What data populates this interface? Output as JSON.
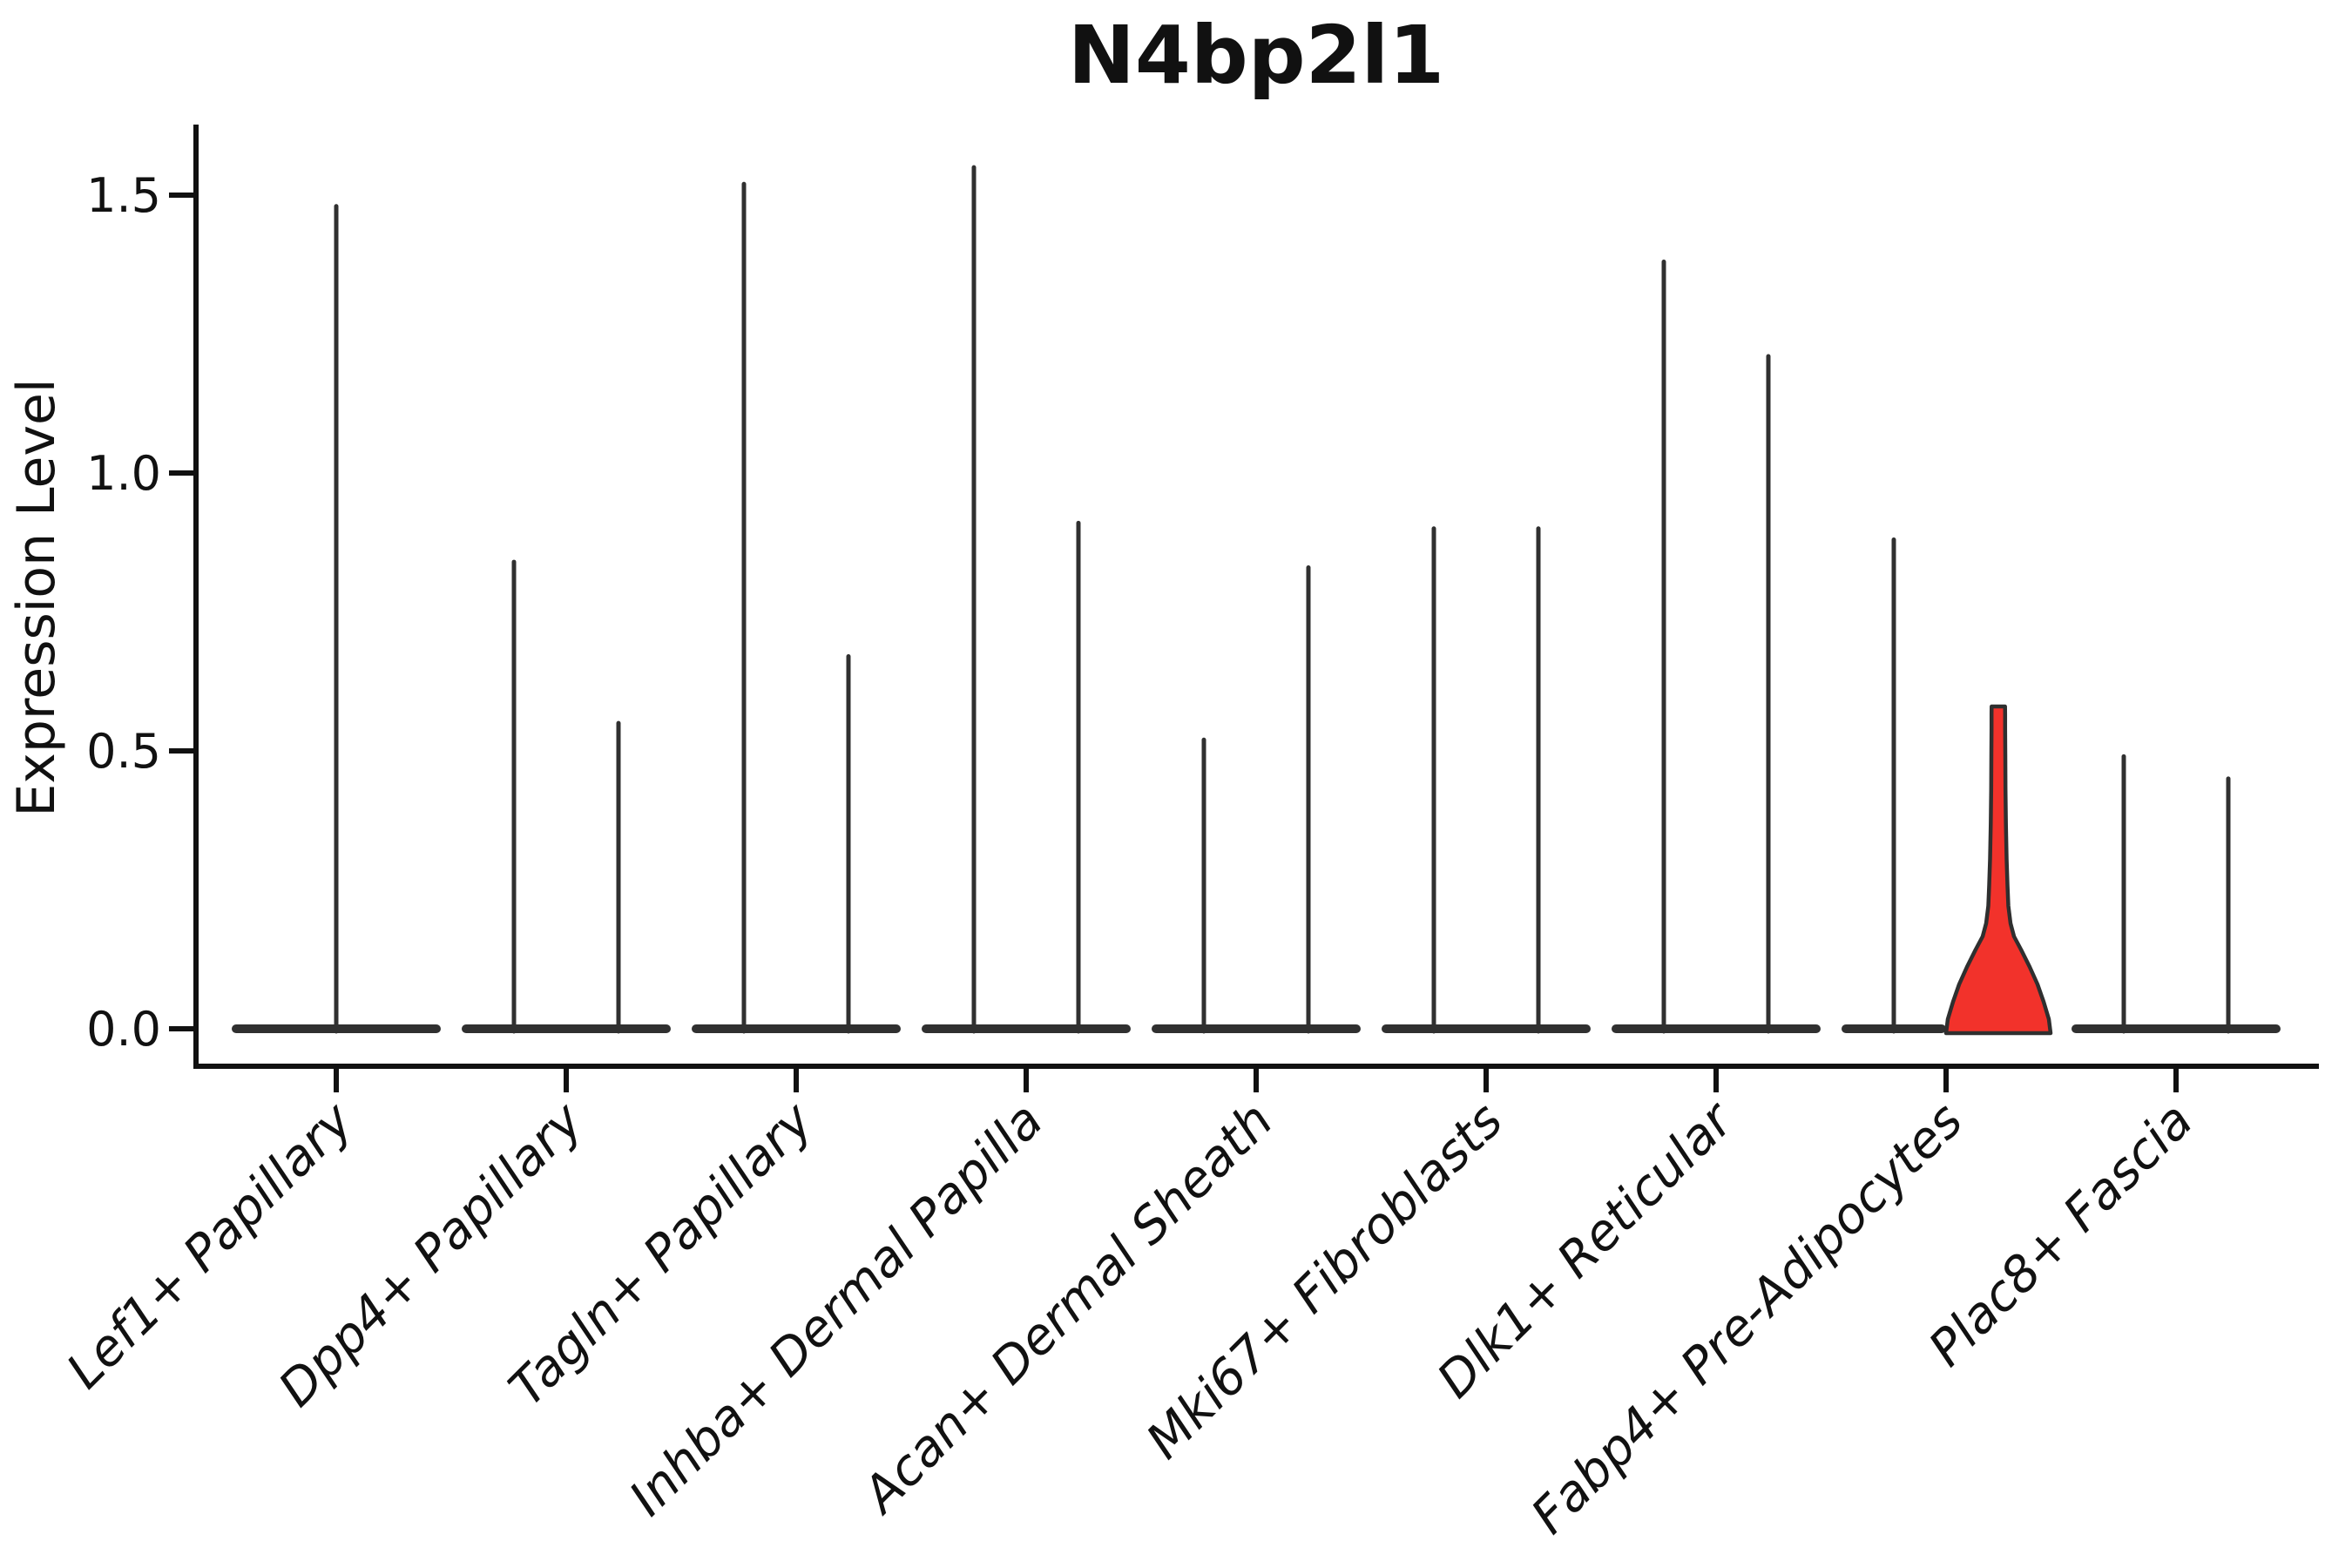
{
  "chart_data": {
    "type": "violin",
    "title": "N4bp2l1",
    "ylabel": "Expression Level",
    "ytick_labels": [
      "0.0",
      "0.5",
      "1.0",
      "1.5"
    ],
    "ytick_values": [
      0.0,
      0.5,
      1.0,
      1.5
    ],
    "ylim": [
      -0.07,
      1.63
    ],
    "grid": "off",
    "legend": "none",
    "categories": [
      {
        "label": "Lef1+ Papillary",
        "violins": [
          {
            "max": 1.48,
            "span": "full"
          }
        ]
      },
      {
        "label": "Dpp4+ Papillary",
        "violins": [
          {
            "max": 0.84
          },
          {
            "max": 0.55
          }
        ]
      },
      {
        "label": "Tagln+ Papillary",
        "violins": [
          {
            "max": 1.52
          },
          {
            "max": 0.67
          }
        ]
      },
      {
        "label": "Inhba+ Dermal Papilla",
        "violins": [
          {
            "max": 1.55
          },
          {
            "max": 0.91
          }
        ]
      },
      {
        "label": "Acan+ Dermal Sheath",
        "violins": [
          {
            "max": 0.52
          },
          {
            "max": 0.83
          }
        ]
      },
      {
        "label": "Mki67+ Fibroblasts",
        "violins": [
          {
            "max": 0.9
          },
          {
            "max": 0.9
          }
        ]
      },
      {
        "label": "Dlk1+ Reticular",
        "violins": [
          {
            "max": 1.38
          },
          {
            "max": 1.21
          }
        ]
      },
      {
        "label": "Fabp4+ Pre-Adipocytes",
        "violins": [
          {
            "max": 0.88
          },
          {
            "max": 0.58,
            "highlight": true
          }
        ]
      },
      {
        "label": "Plac8+ Fascia",
        "violins": [
          {
            "max": 0.49
          },
          {
            "max": 0.45
          }
        ]
      }
    ],
    "colors": {
      "violin_line": "#303030",
      "highlight_fill": "#F2322B",
      "highlight_outline": "#2F2F2F",
      "axis": "#111111",
      "background": "#FFFFFF"
    }
  }
}
